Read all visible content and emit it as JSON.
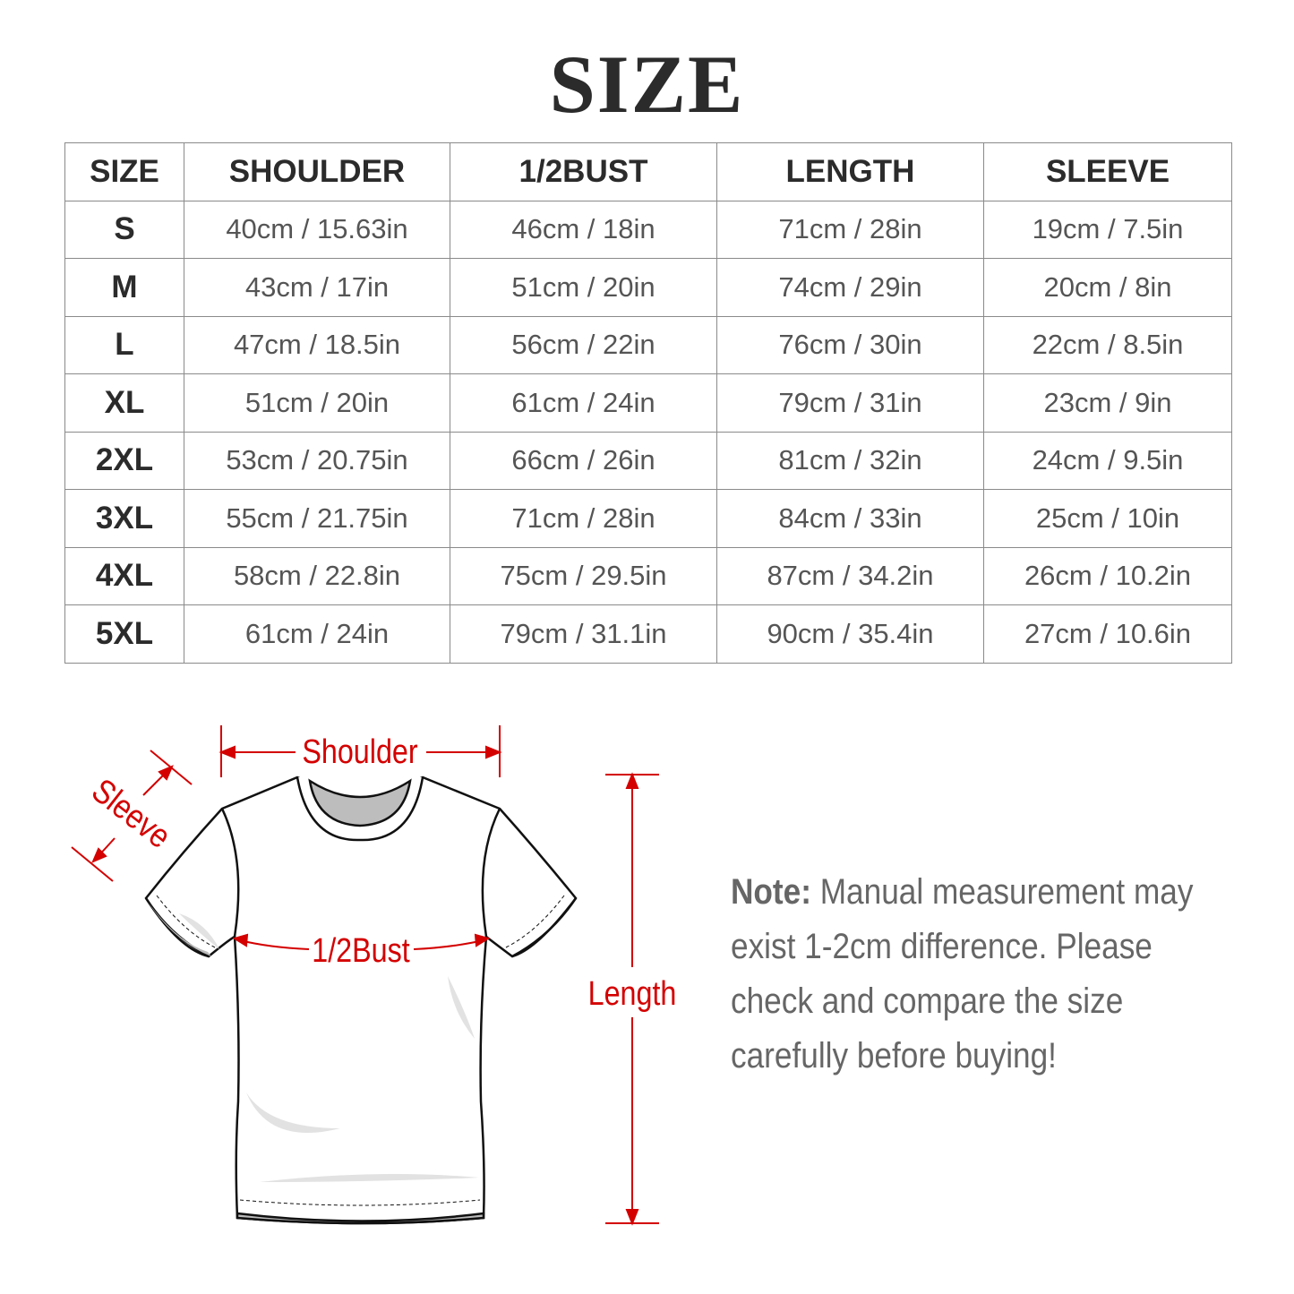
{
  "title": "SIZE",
  "table": {
    "headers": [
      "SIZE",
      "SHOULDER",
      "1/2BUST",
      "LENGTH",
      "SLEEVE"
    ],
    "rows": [
      [
        "S",
        "40cm / 15.63in",
        "46cm / 18in",
        "71cm / 28in",
        "19cm / 7.5in"
      ],
      [
        "M",
        "43cm / 17in",
        "51cm / 20in",
        "74cm / 29in",
        "20cm / 8in"
      ],
      [
        "L",
        "47cm / 18.5in",
        "56cm / 22in",
        "76cm / 30in",
        "22cm / 8.5in"
      ],
      [
        "XL",
        "51cm / 20in",
        "61cm / 24in",
        "79cm / 31in",
        "23cm / 9in"
      ],
      [
        "2XL",
        "53cm / 20.75in",
        "66cm / 26in",
        "81cm / 32in",
        "24cm / 9.5in"
      ],
      [
        "3XL",
        "55cm / 21.75in",
        "71cm / 28in",
        "84cm / 33in",
        "25cm / 10in"
      ],
      [
        "4XL",
        "58cm / 22.8in",
        "75cm / 29.5in",
        "87cm / 34.2in",
        "26cm / 10.2in"
      ],
      [
        "5XL",
        "61cm / 24in",
        "79cm / 31.1in",
        "90cm / 35.4in",
        "27cm / 10.6in"
      ]
    ]
  },
  "diagram": {
    "shoulder_label": "Shoulder",
    "sleeve_label": "Sleeve",
    "bust_label": "1/2Bust",
    "length_label": "Length",
    "accent_color": "#d40000"
  },
  "note": {
    "label": "Note:",
    "text": " Manual measurement may exist 1-2cm difference. Please check and compare the size carefully before buying!"
  }
}
